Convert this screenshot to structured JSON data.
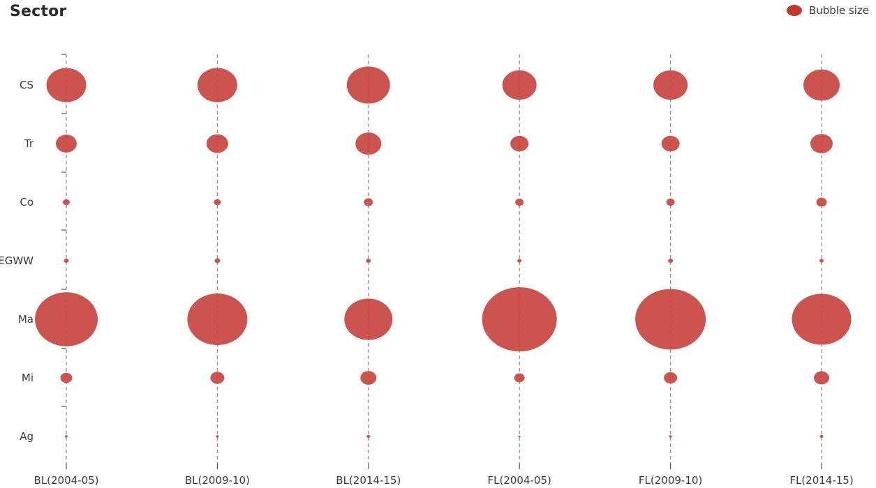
{
  "chart_data": {
    "type": "bubble",
    "ylabel": "Sector",
    "legend": {
      "label": "Bubble size",
      "placement": "top-right",
      "color": "#c0392b"
    },
    "categories_x": [
      "BL(2004-05)",
      "BL(2009-10)",
      "BL(2014-15)",
      "FL(2004-05)",
      "FL(2009-10)",
      "FL(2014-15)"
    ],
    "categories_y": [
      "CS",
      "Tr",
      "Co",
      "EGWW",
      "Ma",
      "Mi",
      "Ag"
    ],
    "bubble_color": "#c94a45",
    "series": [
      {
        "sector": "CS",
        "values": [
          0.057,
          0.057,
          0.062,
          0.049,
          0.049,
          0.052
        ]
      },
      {
        "sector": "Tr",
        "values": [
          0.03,
          0.031,
          0.037,
          0.026,
          0.026,
          0.032
        ]
      },
      {
        "sector": "Co",
        "values": [
          0.01,
          0.01,
          0.013,
          0.012,
          0.012,
          0.015
        ]
      },
      {
        "sector": "EGWW",
        "values": [
          0.007,
          0.008,
          0.007,
          0.006,
          0.007,
          0.006
        ]
      },
      {
        "sector": "Ma",
        "values": [
          0.09,
          0.086,
          0.069,
          0.107,
          0.101,
          0.085
        ]
      },
      {
        "sector": "Mi",
        "values": [
          0.017,
          0.02,
          0.023,
          0.015,
          0.019,
          0.022
        ]
      },
      {
        "sector": "Ag",
        "values": [
          0.004,
          0.004,
          0.005,
          0.003,
          0.004,
          0.005
        ]
      }
    ]
  }
}
